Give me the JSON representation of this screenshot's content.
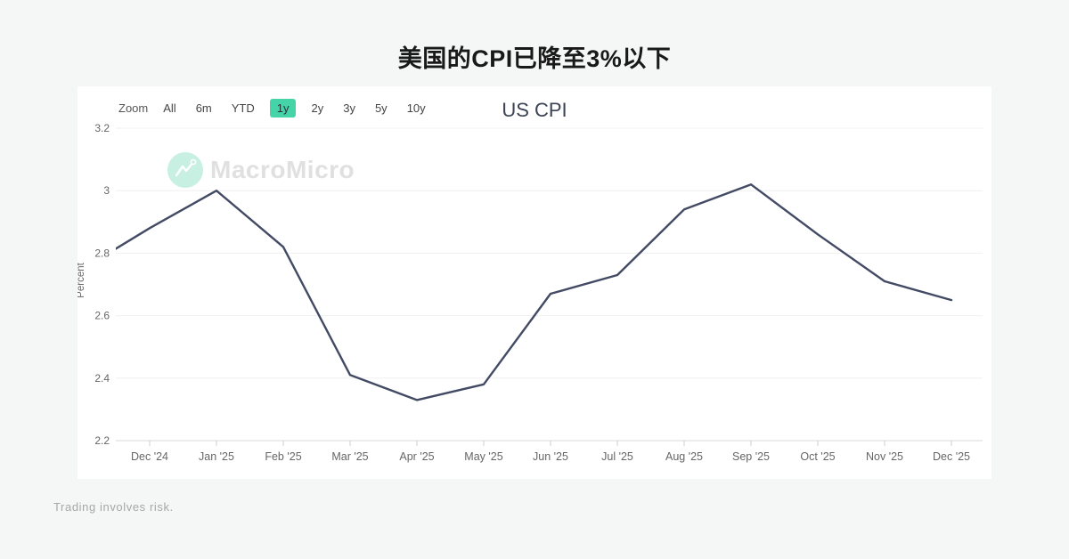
{
  "page": {
    "title": "美国的CPI已降至3%以下"
  },
  "toolbar": {
    "zoom_label": "Zoom",
    "ranges": [
      {
        "label": "All",
        "selected": false
      },
      {
        "label": "6m",
        "selected": false
      },
      {
        "label": "YTD",
        "selected": false
      },
      {
        "label": "1y",
        "selected": true
      },
      {
        "label": "2y",
        "selected": false
      },
      {
        "label": "3y",
        "selected": false
      },
      {
        "label": "5y",
        "selected": false
      },
      {
        "label": "10y",
        "selected": false
      }
    ]
  },
  "watermark": {
    "brand": "MacroMicro"
  },
  "chart_data": {
    "type": "line",
    "title": "US CPI",
    "ylabel": "Percent",
    "categories": [
      "Dec '24",
      "Jan '25",
      "Feb '25",
      "Mar '25",
      "Apr '25",
      "May '25",
      "Jun '25",
      "Jul '25",
      "Aug '25",
      "Sep '25",
      "Oct '25",
      "Nov '25",
      "Dec '25"
    ],
    "values": [
      2.88,
      3.0,
      2.82,
      2.41,
      2.33,
      2.38,
      2.67,
      2.73,
      2.94,
      3.02,
      2.86,
      2.71,
      2.65
    ],
    "pre_point": {
      "label": "Nov '24 (clipped at left plot edge)",
      "value": 2.75
    },
    "ylim": [
      2.2,
      3.2
    ],
    "yticks": [
      3.2,
      3,
      2.8,
      2.6,
      2.4,
      2.2
    ],
    "ytick_labels": [
      "3.2",
      "3",
      "2.8",
      "2.6",
      "2.4",
      "2.2"
    ],
    "grid": true,
    "legend": false
  },
  "colors": {
    "accent_green": "#45d4a8",
    "series_line": "#424a64",
    "grid_line": "#f0f0f0",
    "axis_line": "#d8d8d8",
    "tick_mark": "#cfcfcf",
    "axis_text": "#666666",
    "watermark_circle": "#c7f0e2",
    "watermark_text": "#e0e0e0"
  },
  "footer": {
    "disclaimer": "Trading involves risk."
  }
}
